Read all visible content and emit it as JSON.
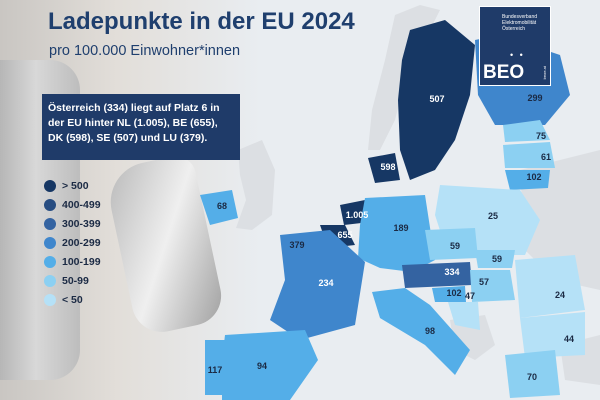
{
  "title": "Ladepunkte in der EU 2024",
  "subtitle": "pro 100.000 Einwohner*innen",
  "info_text": "Österreich (334) liegt auf Platz 6 in der EU hinter NL (1.005), BE (655), DK (598), SE (507) und LU (379).",
  "logo": {
    "line1": "Bundesverband",
    "line2": "Elektromobilität",
    "line3": "Österreich",
    "dots": "• •",
    "mark": "BEO",
    "side": "beoe.at"
  },
  "legend": [
    {
      "label": "> 500",
      "color": "#163764"
    },
    {
      "label": "400-499",
      "color": "#274d82"
    },
    {
      "label": "300-399",
      "color": "#3463a1"
    },
    {
      "label": "200-299",
      "color": "#3f86cc"
    },
    {
      "label": "100-199",
      "color": "#54aee8"
    },
    {
      "label": "50-99",
      "color": "#8cd0f2"
    },
    {
      "label": "< 50",
      "color": "#b5e1f7"
    }
  ],
  "countries": [
    {
      "name": "Schweden",
      "value": "507",
      "class": "> 500"
    },
    {
      "name": "Finnland",
      "value": "299",
      "class": "200-299"
    },
    {
      "name": "Dänemark",
      "value": "598",
      "class": "> 500"
    },
    {
      "name": "Estland",
      "value": "75",
      "class": "50-99"
    },
    {
      "name": "Lettland",
      "value": "61",
      "class": "50-99"
    },
    {
      "name": "Litauen",
      "value": "102",
      "class": "100-199"
    },
    {
      "name": "Irland",
      "value": "68",
      "class": "50-99"
    },
    {
      "name": "Niederlande",
      "value": "1.005",
      "class": "> 500"
    },
    {
      "name": "Belgien",
      "value": "655",
      "class": "> 500"
    },
    {
      "name": "Luxemburg",
      "value": "379",
      "class": "300-399"
    },
    {
      "name": "Deutschland",
      "value": "189",
      "class": "100-199"
    },
    {
      "name": "Polen",
      "value": "25",
      "class": "< 50"
    },
    {
      "name": "Tschechien",
      "value": "59",
      "class": "50-99"
    },
    {
      "name": "Slowakei",
      "value": "59",
      "class": "50-99"
    },
    {
      "name": "Österreich",
      "value": "334",
      "class": "300-399"
    },
    {
      "name": "Frankreich",
      "value": "234",
      "class": "200-299"
    },
    {
      "name": "Slowenien",
      "value": "102",
      "class": "100-199"
    },
    {
      "name": "Ungarn",
      "value": "57",
      "class": "50-99"
    },
    {
      "name": "Kroatien",
      "value": "47",
      "class": "< 50"
    },
    {
      "name": "Rumänien",
      "value": "24",
      "class": "< 50"
    },
    {
      "name": "Italien",
      "value": "98",
      "class": "50-99"
    },
    {
      "name": "Spanien",
      "value": "94",
      "class": "50-99"
    },
    {
      "name": "Portugal",
      "value": "117",
      "class": "100-199"
    },
    {
      "name": "Bulgarien",
      "value": "44",
      "class": "< 50"
    },
    {
      "name": "Griechenland",
      "value": "70",
      "class": "50-99"
    }
  ]
}
